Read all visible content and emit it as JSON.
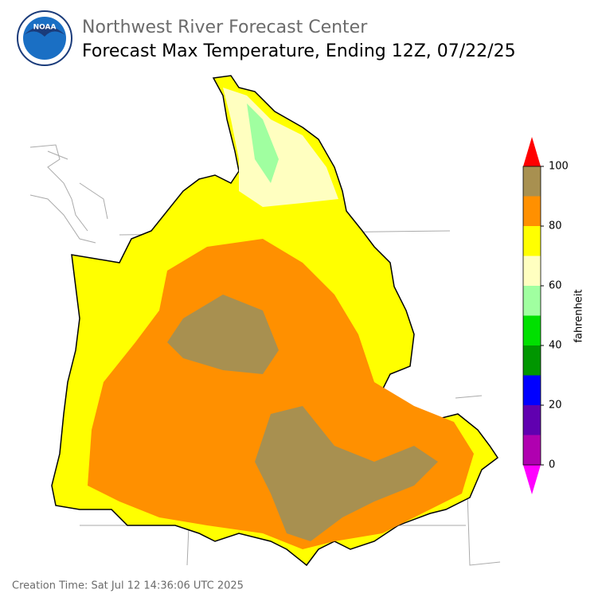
{
  "header": {
    "agency": "Northwest River Forecast Center",
    "title": "Forecast Max Temperature, Ending 12Z, 07/22/25",
    "logo_text": "NOAA"
  },
  "map": {
    "legend": {
      "label": "fahrenheit",
      "bins": [
        0,
        10,
        20,
        30,
        40,
        50,
        60,
        70,
        80,
        90,
        100
      ],
      "colors": [
        "#b000b0",
        "#6000b0",
        "#0000ff",
        "#009600",
        "#00e000",
        "#a0ffa0",
        "#ffffc0",
        "#ffff00",
        "#ff9000",
        "#a89050"
      ],
      "under_color": "#ff00ff",
      "over_color": "#ff0000",
      "ticks": [
        0,
        20,
        40,
        60,
        80,
        100
      ]
    }
  },
  "footer": {
    "creation_time": "Creation Time: Sat Jul 12 14:36:06 UTC 2025"
  }
}
